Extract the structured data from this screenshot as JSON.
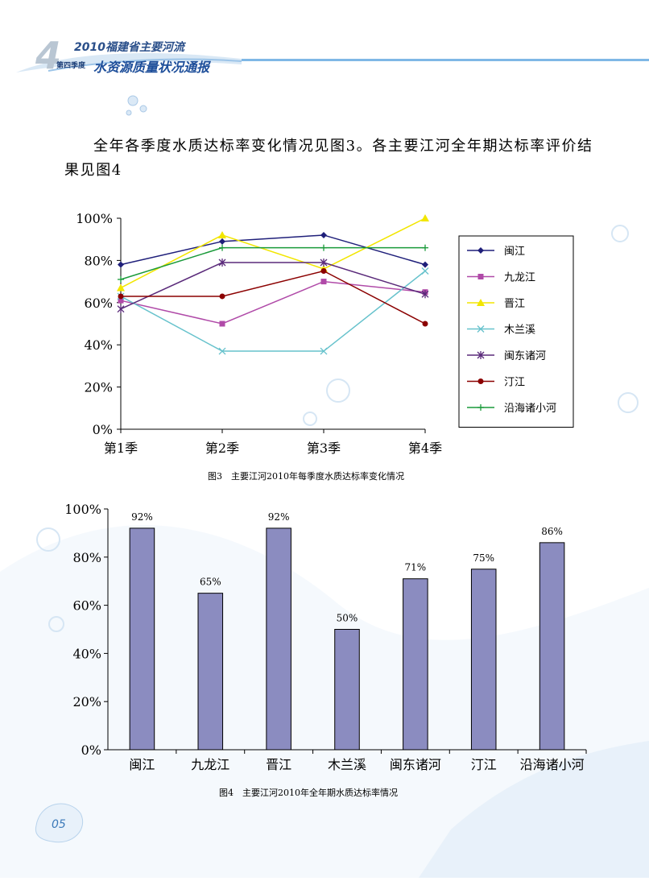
{
  "header": {
    "issue_number": "4",
    "year_title": "2010福建省主要河流",
    "quarter_label": "第四季度",
    "report_title": "水资源质量状况通报"
  },
  "paragraph": "全年各季度水质达标率变化情况见图3。各主要江河全年期达标率评价结果见图4",
  "captions": {
    "figure3": "图3　主要江河2010年每季度水质达标率变化情况",
    "figure4": "图4　主要江河2010年全年期水质达标率情况"
  },
  "page_number": "05",
  "chart_data": [
    {
      "type": "line",
      "categories": [
        "第1季",
        "第2季",
        "第3季",
        "第4季"
      ],
      "y_ticks": [
        "0%",
        "20%",
        "40%",
        "60%",
        "80%",
        "100%"
      ],
      "ylim": [
        0,
        100
      ],
      "legend_position": "right",
      "series": [
        {
          "name": "闽江",
          "values": [
            78,
            89,
            92,
            78
          ],
          "color": "#1f1f7a",
          "marker": "diamond"
        },
        {
          "name": "九龙江",
          "values": [
            61,
            50,
            70,
            65
          ],
          "color": "#b04aa8",
          "marker": "square"
        },
        {
          "name": "晋江",
          "values": [
            67,
            92,
            76,
            100
          ],
          "color": "#f2e600",
          "marker": "triangle"
        },
        {
          "name": "木兰溪",
          "values": [
            63,
            37,
            37,
            75
          ],
          "color": "#66c2cc",
          "marker": "x"
        },
        {
          "name": "闽东诸河",
          "values": [
            57,
            79,
            79,
            64
          ],
          "color": "#5a2a7a",
          "marker": "star"
        },
        {
          "name": "汀江",
          "values": [
            63,
            63,
            75,
            50
          ],
          "color": "#8b0000",
          "marker": "circle"
        },
        {
          "name": "沿海诸小河",
          "values": [
            71,
            86,
            86,
            86
          ],
          "color": "#1a9a3a",
          "marker": "plus"
        }
      ]
    },
    {
      "type": "bar",
      "categories": [
        "闽江",
        "九龙江",
        "晋江",
        "木兰溪",
        "闽东诸河",
        "汀江",
        "沿海诸小河"
      ],
      "values": [
        92,
        65,
        92,
        50,
        71,
        75,
        86
      ],
      "data_labels": [
        "92%",
        "65%",
        "92%",
        "50%",
        "71%",
        "75%",
        "86%"
      ],
      "y_ticks": [
        "0%",
        "20%",
        "40%",
        "60%",
        "80%",
        "100%"
      ],
      "ylim": [
        0,
        100
      ],
      "bar_color": "#8b8cc0"
    }
  ]
}
